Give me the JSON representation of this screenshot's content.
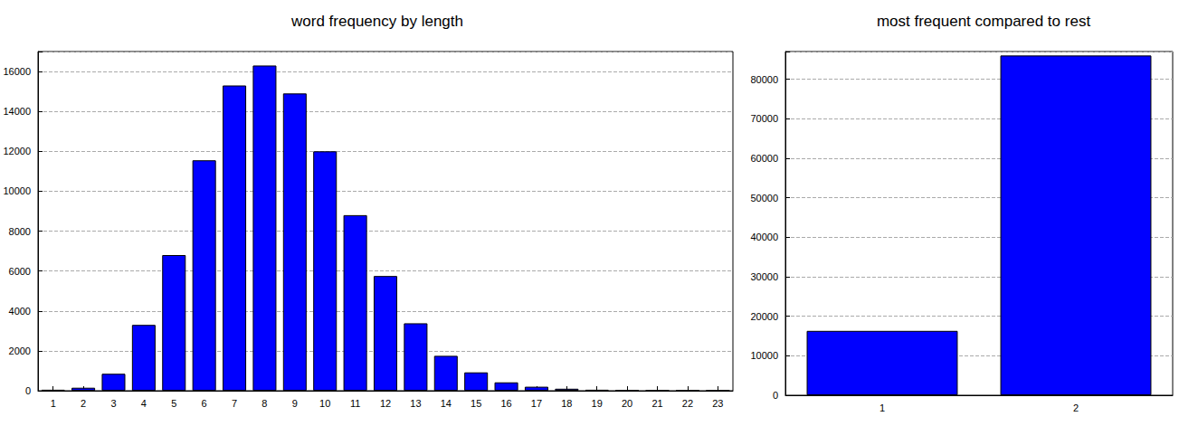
{
  "chart_data": [
    {
      "type": "bar",
      "title": "word frequency by length",
      "categories": [
        "1",
        "2",
        "3",
        "4",
        "5",
        "6",
        "7",
        "8",
        "9",
        "10",
        "11",
        "12",
        "13",
        "14",
        "15",
        "16",
        "17",
        "18",
        "19",
        "20",
        "21",
        "22",
        "23"
      ],
      "values": [
        50,
        150,
        850,
        3300,
        6800,
        11550,
        15300,
        16300,
        14900,
        12000,
        8800,
        5750,
        3380,
        1750,
        920,
        420,
        200,
        100,
        50,
        25,
        15,
        10,
        5
      ],
      "color": "#0000ff",
      "ylim": [
        0,
        17000
      ],
      "yticks": [
        0,
        2000,
        4000,
        6000,
        8000,
        10000,
        12000,
        14000,
        16000
      ],
      "grid": true
    },
    {
      "type": "bar",
      "title": "most frequent compared to rest",
      "categories": [
        "1",
        "2"
      ],
      "values": [
        16300,
        86000
      ],
      "color": "#0000ff",
      "ylim": [
        0,
        87000
      ],
      "yticks": [
        0,
        10000,
        20000,
        30000,
        40000,
        50000,
        60000,
        70000,
        80000
      ],
      "grid": true
    }
  ]
}
